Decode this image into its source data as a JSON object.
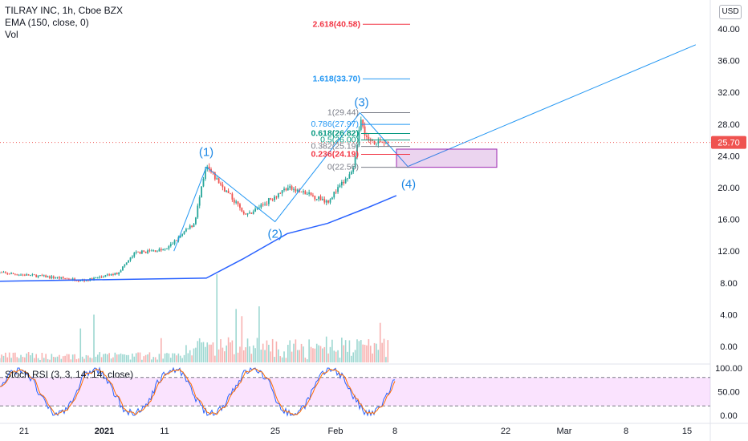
{
  "header": {
    "symbol_line": "TILRAY INC, 1h, Cboe BZX",
    "indicator_1": "EMA (150, close, 0)",
    "indicator_2": "Vol",
    "currency_button": "USD"
  },
  "price_axis": {
    "ticks": [
      "40.00",
      "36.00",
      "32.00",
      "28.00",
      "24.00",
      "20.00",
      "16.00",
      "12.00",
      "8.00",
      "4.00",
      "0.00"
    ],
    "last_price": "25.70"
  },
  "rsi": {
    "label": "Stoch RSI (3, 3, 14, 14, close)",
    "ticks": [
      "100.00",
      "50.00",
      "0.00"
    ]
  },
  "time_axis": {
    "ticks": [
      "21",
      "2021",
      "11",
      "25",
      "Feb",
      "8",
      "22",
      "Mar",
      "8",
      "15"
    ]
  },
  "colors": {
    "up": "#26a69a",
    "down": "#ef5350",
    "ema": "#2962ff",
    "wave": "#2196f3",
    "fib_red": "#f23645",
    "fib_blue": "#2196f3",
    "fib_green": "#089981",
    "fib_gray": "#787b86",
    "target_box": "#9c27b0",
    "rsi_band": "#e1bee7"
  },
  "chart_data": {
    "type": "candlestick",
    "title": "TILRAY INC, 1h, Cboe BZX",
    "ylim": [
      -1,
      43
    ],
    "y_ticks": [
      0,
      4,
      8,
      12,
      16,
      20,
      24,
      28,
      32,
      36,
      40
    ],
    "x_ticks": [
      "21",
      "2021",
      "11",
      "25",
      "Feb",
      "8",
      "22",
      "Mar",
      "8",
      "15"
    ],
    "last_price": 25.7,
    "ema_label": "EMA (150, close, 0)",
    "ema_approx": [
      [
        -0.4,
        8.2
      ],
      [
        10,
        8.6
      ],
      [
        11.8,
        11.0
      ],
      [
        14,
        14.2
      ],
      [
        16,
        15.5
      ],
      [
        18,
        17.5
      ],
      [
        19.4,
        19.0
      ]
    ],
    "price_path_approx": [
      [
        -0.4,
        9.3
      ],
      [
        2,
        8.8
      ],
      [
        4,
        8.3
      ],
      [
        5.6,
        9.2
      ],
      [
        6.5,
        11.8
      ],
      [
        8,
        12.2
      ],
      [
        9.4,
        15.5
      ],
      [
        10,
        22.6
      ],
      [
        11,
        19.5
      ],
      [
        12,
        16.5
      ],
      [
        14,
        20.0
      ],
      [
        16,
        18.3
      ],
      [
        17.3,
        22.2
      ],
      [
        17.6,
        28.7
      ],
      [
        18,
        25.9
      ],
      [
        19,
        25.7
      ]
    ],
    "elliott_waves": [
      {
        "label": "(1)",
        "x": 10,
        "price": 22.6
      },
      {
        "label": "(2)",
        "x": 13.4,
        "price": 15.7
      },
      {
        "label": "(3)",
        "x": 17.6,
        "price": 29.44
      },
      {
        "label": "(4)",
        "x": 20,
        "price": 22.56
      }
    ],
    "projection_line": [
      [
        20,
        22.7
      ],
      [
        34.2,
        38.0
      ]
    ],
    "target_zone": {
      "price_low": 22.56,
      "price_high": 24.85
    },
    "fib_levels": [
      {
        "ratio": "2.618",
        "price": 40.58,
        "label": "2.618(40.58)",
        "color": "#f23645"
      },
      {
        "ratio": "1.618",
        "price": 33.7,
        "label": "1.618(33.70)",
        "color": "#2196f3"
      },
      {
        "ratio": "1",
        "price": 29.44,
        "label": "1(29.44)",
        "color": "#787b86"
      },
      {
        "ratio": "0.786",
        "price": 27.97,
        "label": "0.786(27.97)",
        "color": "#2196f3"
      },
      {
        "ratio": "0.618",
        "price": 26.82,
        "label": "0.618(26.82)",
        "color": "#089981"
      },
      {
        "ratio": "0.5",
        "price": 26.0,
        "label": "0.5(26.00)",
        "color": "#089981"
      },
      {
        "ratio": "0.382",
        "price": 25.19,
        "label": "0.382(25.19)",
        "color": "#787b86"
      },
      {
        "ratio": "0.236",
        "price": 24.19,
        "label": "0.236(24.19)",
        "color": "#f23645"
      },
      {
        "ratio": "0",
        "price": 22.56,
        "label": "0(22.56)",
        "color": "#787b86"
      }
    ],
    "volume_label": "Vol",
    "stoch_rsi": {
      "label": "Stoch RSI (3, 3, 14, 14, close)",
      "ylim": [
        0,
        100
      ],
      "bands": [
        20,
        80
      ],
      "ticks": [
        0,
        50,
        100
      ]
    }
  }
}
